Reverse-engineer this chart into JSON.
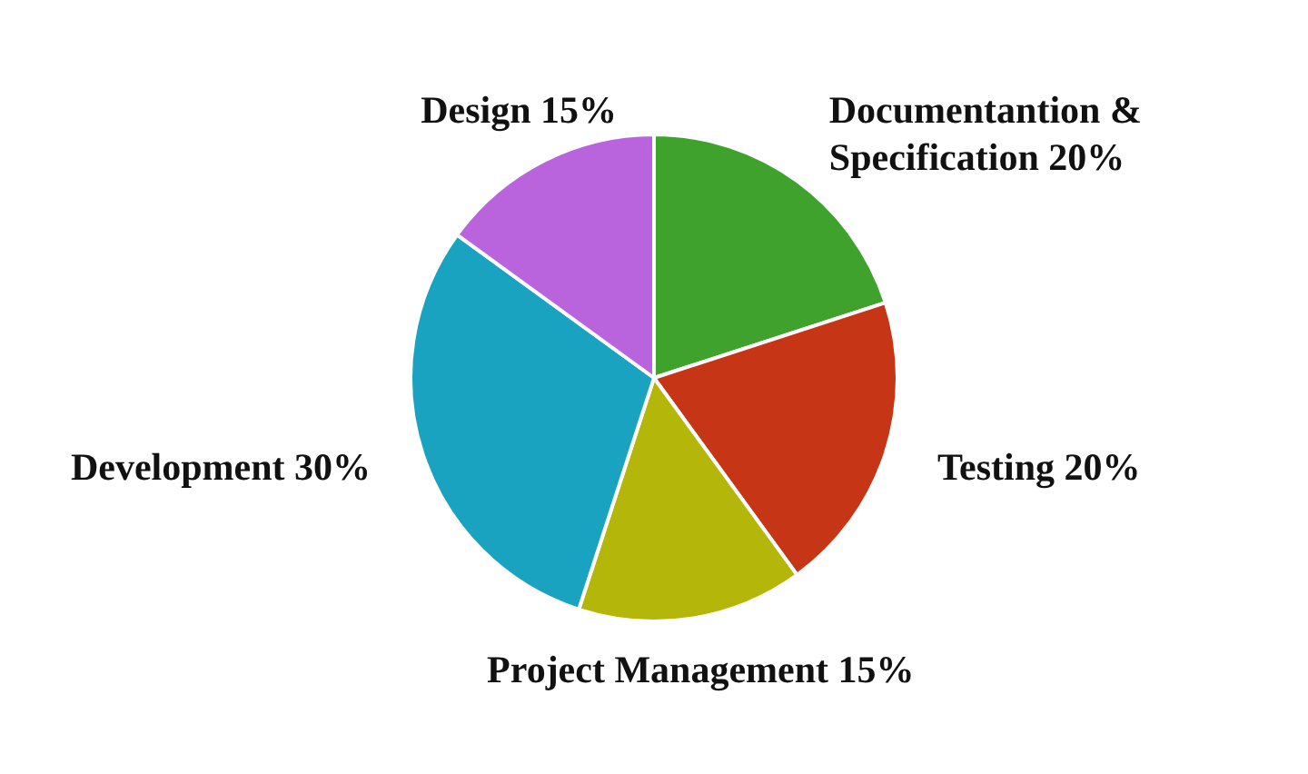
{
  "chart_data": {
    "type": "pie",
    "categories": [
      "Documentantion & Specification",
      "Testing",
      "Project Management",
      "Development",
      "Design"
    ],
    "values": [
      20,
      20,
      15,
      30,
      15
    ],
    "value_labels": [
      "20%",
      "20%",
      "15%",
      "30%",
      "15%"
    ],
    "colors": [
      "#3fa22d",
      "#c53516",
      "#b5b60a",
      "#1aa3c0",
      "#b964dc"
    ],
    "legend": false
  }
}
